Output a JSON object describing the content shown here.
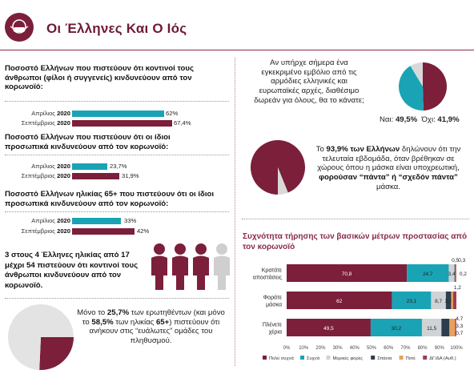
{
  "header": {
    "title": "Οι Έλληνες Και Ο Ιός"
  },
  "left": {
    "blocks": [
      {
        "question": "Ποσοστό Ελλήνων που πιστεύουν ότι κοντινοί τους άνθρωποι (φίλοι ή συγγενείς) κινδυνεύουν από τον κορωνοϊό:",
        "bars": [
          {
            "label_a": "Απρίλιος",
            "label_b": "2020",
            "value": 62,
            "text": "62%"
          },
          {
            "label_a": "Σεπτέμβριος",
            "label_b": "2020",
            "value": 67.4,
            "text": "67,4%"
          }
        ]
      },
      {
        "question": "Ποσοστό Ελλήνων που πιστεύουν ότι οι ίδιοι προσωπικά κινδυνεύουν από τον κορωνοϊό:",
        "bars": [
          {
            "label_a": "Απρίλιος",
            "label_b": "2020",
            "value": 23.7,
            "text": "23,7%"
          },
          {
            "label_a": "Σεπτέμβριος",
            "label_b": "2020",
            "value": 31.9,
            "text": "31,9%"
          }
        ]
      },
      {
        "question": "Ποσοστό Ελλήνων ηλικίας 65+ που πιστεύουν ότι οι ίδιοι προσωπικά κινδυνεύουν από τον κορωνοϊό:",
        "bars": [
          {
            "label_a": "Απρίλιος",
            "label_b": "2020",
            "value": 33,
            "text": "33%"
          },
          {
            "label_a": "Σεπτέμβριος",
            "label_b": "2020",
            "value": 42,
            "text": "42%"
          }
        ]
      }
    ],
    "people_text": "3 στους 4 Έλληνες ηλικίας από 17 μέχρι 54 πιστεύουν ότι κοντινοί τους άνθρωποι κινδυνεύουν από τον κορωνοϊό.",
    "vuln_text": {
      "p1": "Μόνο το ",
      "b1": "25,7%",
      "p2": " των ερωτηθέντων (και μόνο το ",
      "b2": "58,5%",
      "p3": " των ηλικίας ",
      "b3": "65+",
      "p4": ") πιστεύουν ότι ανήκουν στις “ευάλωτες” ομάδες του πληθυσμού."
    }
  },
  "right": {
    "vaccine_text": "Αν υπήρχε σήμερα ένα εγκεκριμένο εμβόλιο από τις αρμόδιες ελληνικές και ευρωπαϊκές αρχές, διαθέσιμο δωρεάν για όλους, θα το κάνατε;",
    "vaccine_yes": "Ναι: ",
    "vaccine_yes_val": "49,5%",
    "vaccine_no": "Όχι: ",
    "vaccine_no_val": "41,9%",
    "mask_text": {
      "p1": "Το ",
      "b1": "93,9% των Ελλήνων",
      "p2": " δηλώνουν ότι την τελευταία εβδομάδα, όταν βρέθηκαν σε χώρους όπου η μάσκα είναι υποχρεωτική, ",
      "b2": "φορούσαν “πάντα” ή “σχεδόν πάντα”",
      "p3": " μάσκα."
    }
  },
  "colors": {
    "burgundy": "#7b1f3a",
    "teal": "#1aa3b5",
    "light": "#d9d9d9",
    "gray": "#9a9a9a"
  },
  "chart_data": [
    {
      "type": "pie",
      "values": [
        49.5,
        41.9,
        8.6
      ],
      "labels": [
        "Ναι",
        "Όχι",
        ""
      ]
    },
    {
      "type": "pie",
      "values": [
        93.9,
        6.1
      ]
    },
    {
      "type": "pie",
      "values": [
        25.7,
        74.3
      ]
    },
    {
      "type": "bar",
      "orientation": "horizontal-stacked",
      "title": "Συχνότητα τήρησης των βασικών μέτρων προστασίας από τον κορωνοϊό",
      "categories": [
        "Κρατάτε αποστάσεις",
        "Φοράτε μάσκα",
        "Πλένετε χέρια"
      ],
      "series": [
        {
          "name": "Πολύ συχνά",
          "values": [
            70.8,
            62,
            49.5
          ],
          "color": "#7b1f3a"
        },
        {
          "name": "Συχνά",
          "values": [
            24.7,
            23.1,
            30.2
          ],
          "color": "#1aa3b5"
        },
        {
          "name": "Μερικές φορές",
          "values": [
            3.4,
            8.7,
            11.5
          ],
          "color": "#cfd3d6"
        },
        {
          "name": "Σπάνια",
          "values": [
            0.5,
            3.1,
            4.7
          ],
          "color": "#2c3d4f"
        },
        {
          "name": "Ποτέ",
          "values": [
            0.3,
            1.2,
            3.3
          ],
          "color": "#e6a15a"
        },
        {
          "name": "ΔΓ/ΔΑ (Αυθ.)",
          "values": [
            0.2,
            1.9,
            0.7
          ],
          "color": "#a13a55"
        }
      ],
      "value_labels": [
        [
          "70,8",
          "24,7",
          "3,4",
          "0,5",
          "0,3",
          "0,2"
        ],
        [
          "62",
          "23,1",
          "8,7",
          "3,1",
          "1,2",
          ""
        ],
        [
          "49,5",
          "30,2",
          "11,5",
          "4,7",
          "3,3",
          "0,7"
        ]
      ],
      "xticks": [
        "0%",
        "10%",
        "20%",
        "30%",
        "40%",
        "50%",
        "60%",
        "70%",
        "80%",
        "90%",
        "100%"
      ],
      "xlim": [
        0,
        100
      ]
    }
  ]
}
